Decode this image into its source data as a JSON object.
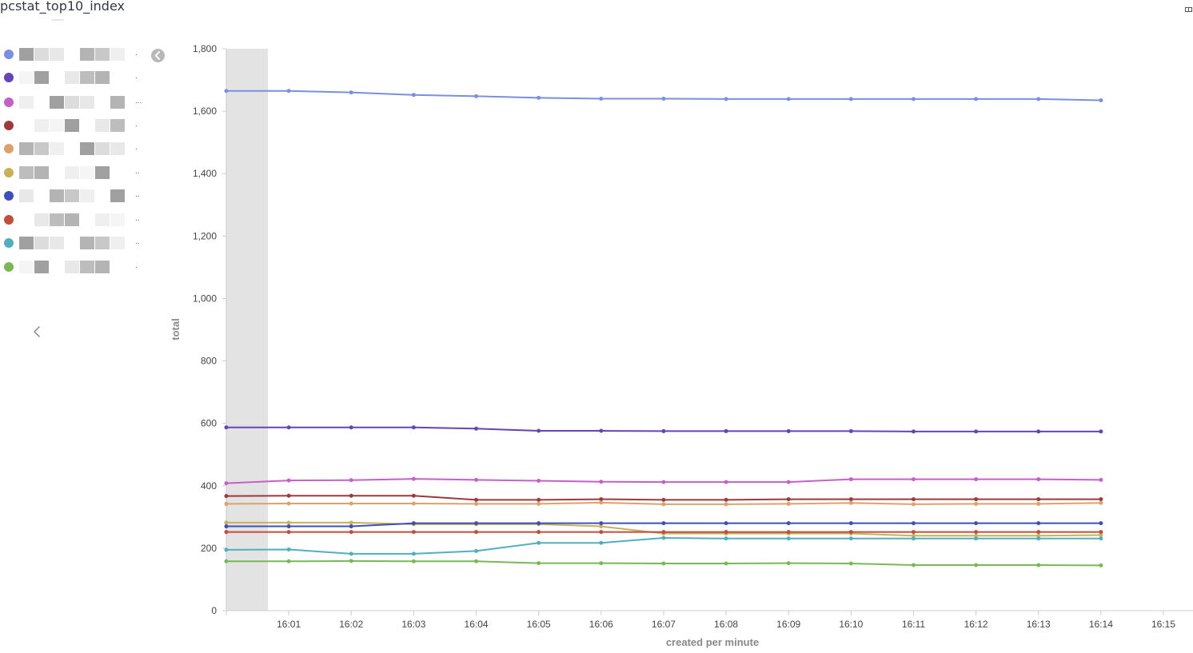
{
  "panel": {
    "title": "pcstat_top10_index"
  },
  "legend": {
    "items": [
      {
        "color": "#7b8fe0",
        "suffix": "."
      },
      {
        "color": "#6445b5",
        "suffix": "."
      },
      {
        "color": "#c65fc8",
        "suffix": "..."
      },
      {
        "color": "#9b3a3f",
        "suffix": "."
      },
      {
        "color": "#dca26b",
        "suffix": "."
      },
      {
        "color": "#c9b15c",
        "suffix": ".."
      },
      {
        "color": "#3f4fb8",
        "suffix": ".."
      },
      {
        "color": "#bf4f3b",
        "suffix": ".."
      },
      {
        "color": "#52aebf",
        "suffix": ".."
      },
      {
        "color": "#79b955",
        "suffix": "."
      }
    ]
  },
  "chart_data": {
    "type": "line",
    "xlabel": "created per minute",
    "ylabel": "total",
    "ylim": [
      0,
      1800
    ],
    "y_ticks": [
      0,
      200,
      400,
      600,
      800,
      1000,
      1200,
      1400,
      1600,
      1800
    ],
    "y_tick_labels": [
      "0",
      "200",
      "400",
      "600",
      "800",
      "1,000",
      "1,200",
      "1,400",
      "1,600",
      "1,800"
    ],
    "x_tick_labels": [
      "16:01",
      "16:02",
      "16:03",
      "16:04",
      "16:05",
      "16:06",
      "16:07",
      "16:08",
      "16:09",
      "16:10",
      "16:11",
      "16:12",
      "16:13",
      "16:14",
      "16:15"
    ],
    "x": [
      "16:00",
      "16:01",
      "16:02",
      "16:03",
      "16:04",
      "16:05",
      "16:06",
      "16:07",
      "16:08",
      "16:09",
      "16:10",
      "16:11",
      "16:12",
      "16:13",
      "16:14"
    ],
    "x_range": [
      "16:00",
      "16:15"
    ],
    "partial_bucket": [
      "16:00",
      "16:00:40"
    ],
    "grid": false,
    "legend": "left",
    "series": [
      {
        "color": "#7b8fe0",
        "values": [
          1665,
          1665,
          1660,
          1652,
          1648,
          1643,
          1640,
          1640,
          1639,
          1639,
          1639,
          1639,
          1639,
          1639,
          1635
        ]
      },
      {
        "color": "#6445b5",
        "values": [
          587,
          587,
          587,
          587,
          583,
          576,
          576,
          575,
          575,
          575,
          575,
          574,
          574,
          574,
          574
        ]
      },
      {
        "color": "#c65fc8",
        "values": [
          408,
          417,
          418,
          422,
          419,
          416,
          413,
          412,
          412,
          412,
          421,
          421,
          421,
          421,
          419
        ]
      },
      {
        "color": "#9b3a3f",
        "values": [
          367,
          368,
          368,
          368,
          355,
          355,
          357,
          355,
          355,
          357,
          357,
          357,
          357,
          357,
          357
        ]
      },
      {
        "color": "#dca26b",
        "values": [
          342,
          343,
          343,
          343,
          342,
          342,
          346,
          341,
          341,
          342,
          345,
          341,
          342,
          342,
          345
        ]
      },
      {
        "color": "#c9b15c",
        "values": [
          282,
          282,
          282,
          277,
          277,
          277,
          270,
          247,
          247,
          247,
          247,
          240,
          240,
          240,
          242
        ]
      },
      {
        "color": "#3f4fb8",
        "values": [
          270,
          270,
          270,
          280,
          280,
          280,
          280,
          280,
          280,
          280,
          280,
          280,
          280,
          280,
          280
        ]
      },
      {
        "color": "#bf4f3b",
        "values": [
          252,
          252,
          252,
          252,
          252,
          252,
          252,
          252,
          252,
          252,
          252,
          252,
          252,
          252,
          252
        ]
      },
      {
        "color": "#52aebf",
        "values": [
          195,
          196,
          182,
          182,
          191,
          217,
          217,
          233,
          231,
          231,
          231,
          231,
          231,
          231,
          231
        ]
      },
      {
        "color": "#79b955",
        "values": [
          158,
          158,
          159,
          158,
          158,
          152,
          152,
          151,
          151,
          152,
          151,
          146,
          146,
          146,
          145
        ]
      }
    ]
  }
}
